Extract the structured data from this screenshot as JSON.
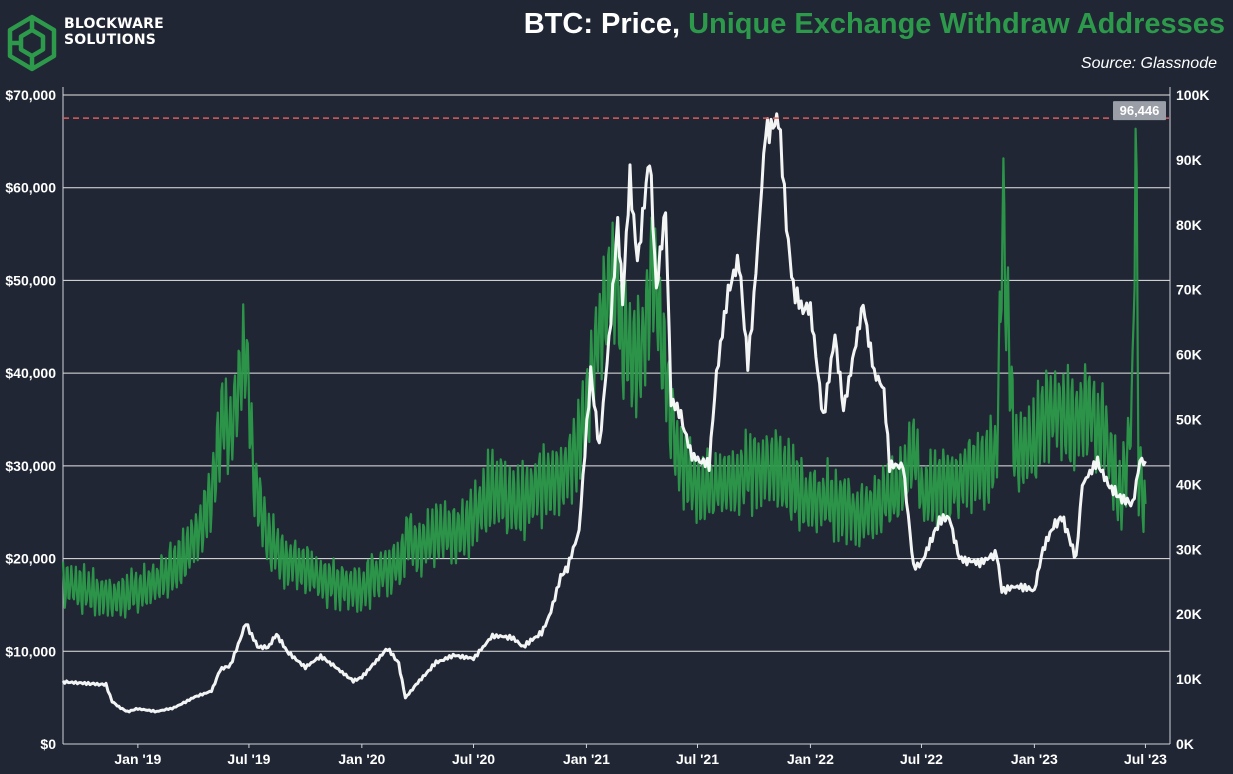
{
  "header": {
    "logo_line1": "BLOCKWARE",
    "logo_line2": "SOLUTIONS",
    "title_prefix": "BTC: Price, ",
    "title_highlight": "Unique Exchange Withdraw Addresses",
    "source": "Source: Glassnode"
  },
  "colors": {
    "background": "#202634",
    "price_line": "#ffffff",
    "addresses_line": "#2c9a4a",
    "reference_line": "#e05b5b",
    "grid": "#e6e6e6"
  },
  "chart_data": {
    "type": "line",
    "x_range": [
      "2018-09-01",
      "2023-08-10"
    ],
    "x_ticks": [
      {
        "date": "2019-01-01",
        "label": "Jan '19"
      },
      {
        "date": "2019-07-01",
        "label": "Jul '19"
      },
      {
        "date": "2020-01-01",
        "label": "Jan '20"
      },
      {
        "date": "2020-07-01",
        "label": "Jul '20"
      },
      {
        "date": "2021-01-01",
        "label": "Jan '21"
      },
      {
        "date": "2021-07-01",
        "label": "Jul '21"
      },
      {
        "date": "2022-01-01",
        "label": "Jan '22"
      },
      {
        "date": "2022-07-01",
        "label": "Jul '22"
      },
      {
        "date": "2023-01-01",
        "label": "Jan '23"
      },
      {
        "date": "2023-07-01",
        "label": "Jul '23"
      }
    ],
    "y_left": {
      "range": [
        0,
        70000
      ],
      "ticks": [
        0,
        10000,
        20000,
        30000,
        40000,
        50000,
        60000,
        70000
      ],
      "tick_labels": [
        "$0",
        "$10,000",
        "$20,000",
        "$30,000",
        "$40,000",
        "$50,000",
        "$60,000",
        "$70,000"
      ]
    },
    "y_right": {
      "range": [
        0,
        100000
      ],
      "ticks": [
        0,
        10000,
        20000,
        30000,
        40000,
        50000,
        60000,
        70000,
        80000,
        90000,
        100000
      ],
      "tick_labels": [
        "0K",
        "10K",
        "20K",
        "30K",
        "40K",
        "50K",
        "60K",
        "70K",
        "80K",
        "90K",
        "100K"
      ]
    },
    "grid": true,
    "reference_line": {
      "value": 96446,
      "label": "96,446",
      "axis": "right"
    },
    "series": [
      {
        "axis": "left",
        "points": [
          [
            "2018-09-01",
            6700
          ],
          [
            "2018-10-15",
            6500
          ],
          [
            "2018-11-10",
            6400
          ],
          [
            "2018-11-20",
            4600
          ],
          [
            "2018-12-01",
            4000
          ],
          [
            "2018-12-15",
            3500
          ],
          [
            "2019-01-01",
            3800
          ],
          [
            "2019-02-01",
            3500
          ],
          [
            "2019-03-01",
            3900
          ],
          [
            "2019-04-01",
            5000
          ],
          [
            "2019-05-01",
            5700
          ],
          [
            "2019-05-15",
            8000
          ],
          [
            "2019-06-01",
            8500
          ],
          [
            "2019-06-26",
            13000
          ],
          [
            "2019-07-15",
            10500
          ],
          [
            "2019-08-01",
            10400
          ],
          [
            "2019-08-15",
            11800
          ],
          [
            "2019-09-01",
            10000
          ],
          [
            "2019-10-01",
            8300
          ],
          [
            "2019-10-26",
            9500
          ],
          [
            "2019-11-15",
            8500
          ],
          [
            "2019-12-18",
            6800
          ],
          [
            "2020-01-01",
            7200
          ],
          [
            "2020-02-12",
            10300
          ],
          [
            "2020-03-01",
            8700
          ],
          [
            "2020-03-12",
            5000
          ],
          [
            "2020-04-01",
            6600
          ],
          [
            "2020-05-01",
            8800
          ],
          [
            "2020-06-01",
            9600
          ],
          [
            "2020-07-01",
            9200
          ],
          [
            "2020-08-01",
            11700
          ],
          [
            "2020-09-01",
            11500
          ],
          [
            "2020-09-20",
            10500
          ],
          [
            "2020-10-20",
            12000
          ],
          [
            "2020-11-01",
            13700
          ],
          [
            "2020-11-20",
            18000
          ],
          [
            "2020-12-01",
            19000
          ],
          [
            "2020-12-20",
            23000
          ],
          [
            "2021-01-08",
            40000
          ],
          [
            "2021-01-22",
            32000
          ],
          [
            "2021-02-10",
            46000
          ],
          [
            "2021-02-21",
            56000
          ],
          [
            "2021-03-01",
            48000
          ],
          [
            "2021-03-13",
            61000
          ],
          [
            "2021-03-25",
            52000
          ],
          [
            "2021-04-14",
            63500
          ],
          [
            "2021-04-25",
            49000
          ],
          [
            "2021-05-10",
            58000
          ],
          [
            "2021-05-19",
            37000
          ],
          [
            "2021-06-01",
            36000
          ],
          [
            "2021-06-22",
            31000
          ],
          [
            "2021-07-20",
            30000
          ],
          [
            "2021-08-01",
            40000
          ],
          [
            "2021-08-20",
            49000
          ],
          [
            "2021-09-07",
            52000
          ],
          [
            "2021-09-21",
            41000
          ],
          [
            "2021-10-01",
            48000
          ],
          [
            "2021-10-20",
            66000
          ],
          [
            "2021-11-10",
            67500
          ],
          [
            "2021-11-26",
            54000
          ],
          [
            "2021-12-04",
            49000
          ],
          [
            "2021-12-20",
            47000
          ],
          [
            "2022-01-01",
            47000
          ],
          [
            "2022-01-22",
            35000
          ],
          [
            "2022-02-10",
            44000
          ],
          [
            "2022-02-24",
            36000
          ],
          [
            "2022-03-28",
            47500
          ],
          [
            "2022-04-15",
            40000
          ],
          [
            "2022-05-01",
            38000
          ],
          [
            "2022-05-10",
            30000
          ],
          [
            "2022-06-01",
            30000
          ],
          [
            "2022-06-18",
            19000
          ],
          [
            "2022-07-01",
            19500
          ],
          [
            "2022-07-30",
            24000
          ],
          [
            "2022-08-15",
            24500
          ],
          [
            "2022-09-01",
            20000
          ],
          [
            "2022-10-01",
            19500
          ],
          [
            "2022-11-01",
            20500
          ],
          [
            "2022-11-09",
            16500
          ],
          [
            "2022-12-01",
            17000
          ],
          [
            "2023-01-01",
            16600
          ],
          [
            "2023-01-15",
            21000
          ],
          [
            "2023-02-01",
            23500
          ],
          [
            "2023-02-15",
            24500
          ],
          [
            "2023-03-10",
            20000
          ],
          [
            "2023-03-20",
            28000
          ],
          [
            "2023-04-14",
            30500
          ],
          [
            "2023-05-01",
            28000
          ],
          [
            "2023-05-15",
            27000
          ],
          [
            "2023-06-10",
            25800
          ],
          [
            "2023-06-22",
            30500
          ],
          [
            "2023-07-01",
            30500
          ]
        ]
      },
      {
        "axis": "right",
        "points": [
          [
            "2018-09-01",
            25000
          ],
          [
            "2018-10-01",
            24000
          ],
          [
            "2018-11-01",
            23000
          ],
          [
            "2018-12-01",
            22500
          ],
          [
            "2019-01-01",
            23500
          ],
          [
            "2019-02-01",
            25000
          ],
          [
            "2019-03-01",
            27500
          ],
          [
            "2019-04-01",
            31000
          ],
          [
            "2019-05-01",
            38000
          ],
          [
            "2019-05-20",
            50000
          ],
          [
            "2019-06-01",
            47000
          ],
          [
            "2019-06-26",
            62000
          ],
          [
            "2019-07-10",
            40000
          ],
          [
            "2019-08-01",
            32000
          ],
          [
            "2019-09-01",
            28000
          ],
          [
            "2019-10-01",
            27000
          ],
          [
            "2019-11-01",
            25000
          ],
          [
            "2019-12-01",
            24500
          ],
          [
            "2020-01-01",
            24000
          ],
          [
            "2020-02-01",
            26500
          ],
          [
            "2020-03-01",
            28000
          ],
          [
            "2020-03-15",
            32000
          ],
          [
            "2020-04-01",
            30000
          ],
          [
            "2020-05-01",
            33000
          ],
          [
            "2020-06-01",
            32000
          ],
          [
            "2020-07-01",
            35000
          ],
          [
            "2020-08-01",
            40000
          ],
          [
            "2020-09-01",
            37000
          ],
          [
            "2020-10-01",
            38000
          ],
          [
            "2020-11-01",
            41000
          ],
          [
            "2020-12-01",
            42000
          ],
          [
            "2021-01-01",
            50000
          ],
          [
            "2021-01-15",
            60000
          ],
          [
            "2021-02-01",
            68000
          ],
          [
            "2021-02-20",
            73000
          ],
          [
            "2021-03-01",
            62000
          ],
          [
            "2021-04-01",
            60000
          ],
          [
            "2021-04-20",
            75000
          ],
          [
            "2021-05-01",
            63000
          ],
          [
            "2021-05-20",
            50000
          ],
          [
            "2021-06-01",
            44000
          ],
          [
            "2021-07-01",
            39000
          ],
          [
            "2021-08-01",
            40000
          ],
          [
            "2021-09-01",
            41000
          ],
          [
            "2021-10-01",
            42000
          ],
          [
            "2021-11-01",
            43000
          ],
          [
            "2021-12-01",
            40000
          ],
          [
            "2022-01-01",
            37000
          ],
          [
            "2022-02-01",
            38000
          ],
          [
            "2022-03-01",
            36000
          ],
          [
            "2022-04-01",
            35000
          ],
          [
            "2022-05-01",
            38000
          ],
          [
            "2022-06-01",
            40000
          ],
          [
            "2022-06-20",
            46000
          ],
          [
            "2022-07-01",
            38000
          ],
          [
            "2022-08-01",
            40000
          ],
          [
            "2022-09-01",
            41000
          ],
          [
            "2022-10-01",
            42000
          ],
          [
            "2022-11-01",
            45000
          ],
          [
            "2022-11-10",
            82000
          ],
          [
            "2022-11-25",
            52000
          ],
          [
            "2022-12-01",
            44000
          ],
          [
            "2023-01-01",
            47000
          ],
          [
            "2023-02-01",
            52000
          ],
          [
            "2023-03-01",
            50000
          ],
          [
            "2023-04-01",
            52000
          ],
          [
            "2023-05-01",
            46000
          ],
          [
            "2023-05-20",
            38000
          ],
          [
            "2023-06-01",
            44000
          ],
          [
            "2023-06-10",
            53000
          ],
          [
            "2023-06-15",
            96446
          ],
          [
            "2023-06-20",
            42000
          ],
          [
            "2023-07-01",
            37000
          ]
        ]
      }
    ]
  }
}
